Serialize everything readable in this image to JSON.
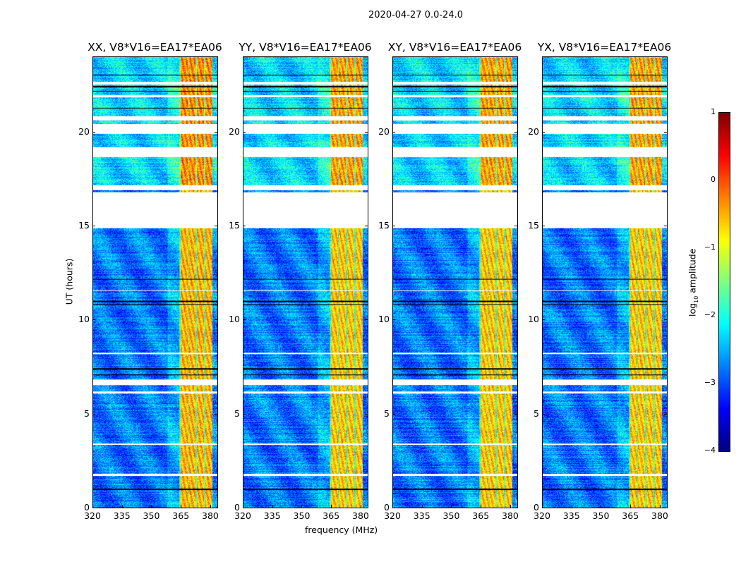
{
  "chart_data": {
    "type": "heatmap",
    "title": "2020-04-27 0.0-24.0",
    "xlabel": "frequency (MHz)",
    "ylabel": "UT (hours)",
    "xlim": [
      320,
      383.6
    ],
    "ylim": [
      0,
      24
    ],
    "xticks": [
      "320",
      "335",
      "350",
      "365",
      "380"
    ],
    "xtick_values": [
      320,
      335,
      350,
      365,
      380
    ],
    "yticks": [
      "0",
      "5",
      "10",
      "15",
      "20"
    ],
    "ytick_values": [
      0,
      5,
      10,
      15,
      20
    ],
    "panels": [
      {
        "title": "XX, V8*V16=EA17*EA06"
      },
      {
        "title": "YY, V8*V16=EA17*EA06"
      },
      {
        "title": "XY, V8*V16=EA17*EA06"
      },
      {
        "title": "YX, V8*V16=EA17*EA06"
      }
    ],
    "rfi_band_mhz": [
      364,
      381
    ],
    "flagged_hours": [
      [
        14.9,
        16.8
      ],
      [
        6.55,
        6.85
      ],
      [
        18.7,
        19.2
      ],
      [
        19.95,
        20.45
      ],
      [
        20.65,
        20.85
      ],
      [
        16.95,
        17.2
      ],
      [
        22.55,
        22.7
      ],
      [
        21.9,
        22.0
      ],
      [
        3.35,
        3.45
      ],
      [
        1.7,
        1.8
      ],
      [
        6.1,
        6.2
      ],
      [
        8.2,
        8.25
      ],
      [
        11.55,
        11.6
      ]
    ],
    "colorbar": {
      "label_main": "log",
      "label_sub": "10",
      "label_rest": " amplitude",
      "range": [
        -4,
        1
      ],
      "ticks": [
        "1",
        "0",
        "−1",
        "−2",
        "−3",
        "−4"
      ],
      "tick_values": [
        1,
        0,
        -1,
        -2,
        -3,
        -4
      ],
      "colormap": "jet"
    }
  }
}
